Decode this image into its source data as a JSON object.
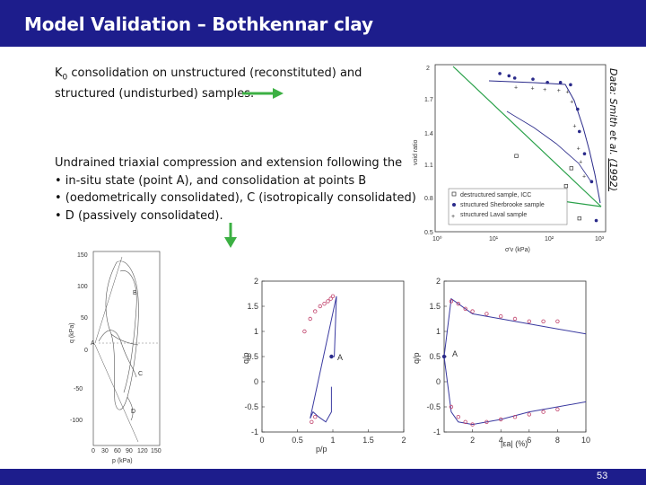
{
  "title": "Model Validation – Bothkennar clay",
  "page_number": "53",
  "text_block_1": {
    "line1_prefix": "K",
    "line1_sub": "0",
    "line1_rest": " consolidation on unstructured (reconstituted) and",
    "line2": "structured (undisturbed) samples."
  },
  "text_block_2": {
    "line1": "Undrained triaxial compression and extension following the",
    "line2": "• in-situ state (point A), and consolidation at points B",
    "line3": "• (oedometrically consolidated), C (isotropically consolidated)",
    "line4": "• D (passively consolidated)."
  },
  "credit": {
    "prefix": "Data: Smith et al. ",
    "year": "(1992)"
  },
  "colors": {
    "title_bar": "#1d1d8c",
    "arrow_green": "#3cb043",
    "model_line": "#3a3aa0",
    "data_points": "#c0406a"
  },
  "chart_data": [
    {
      "type": "scatter",
      "name": "oedometer-void-ratio",
      "xlabel": "σ'v (kPa)",
      "ylabel": "void ratio",
      "xscale": "log",
      "x_ticks": [
        "10⁰",
        "10¹",
        "10²",
        "10³"
      ],
      "y_ticks": [
        "0.5",
        "0.8",
        "1.1",
        "1.4",
        "1.7",
        "2"
      ],
      "ylim": [
        0.5,
        2
      ],
      "legend": [
        "destructured sample, ICC",
        "structured Sherbrooke sample",
        "structured Laval sample"
      ],
      "legend_placement": "bottom-right",
      "series": [
        {
          "name": "destructured sample, ICC",
          "marker": "square-open",
          "x": [
            30,
            40,
            50,
            80,
            100,
            110,
            240,
            420,
            300
          ],
          "y": [
            1.18,
            0.71,
            0.7,
            0.75,
            0.8,
            0.84,
            0.91,
            0.62,
            1.07
          ]
        },
        {
          "name": "structured Sherbrooke sample",
          "marker": "dot",
          "x": [
            15,
            22,
            28,
            60,
            110,
            190,
            290,
            390,
            420,
            520,
            700,
            850
          ],
          "y": [
            1.92,
            1.9,
            1.88,
            1.87,
            1.84,
            1.84,
            1.82,
            1.6,
            1.4,
            1.2,
            0.95,
            0.6
          ]
        },
        {
          "name": "structured Laval sample",
          "marker": "plus",
          "x": [
            30,
            60,
            100,
            180,
            260,
            310,
            350,
            410,
            450,
            520
          ],
          "y": [
            1.8,
            1.79,
            1.78,
            1.77,
            1.76,
            1.67,
            1.45,
            1.25,
            1.13,
            1.0
          ]
        }
      ]
    },
    {
      "type": "line",
      "name": "stress-paths-q-p",
      "xlabel": "p (kPa)",
      "ylabel": "q (kPa)",
      "x_ticks": [
        "0",
        "30",
        "60",
        "90",
        "120",
        "150"
      ],
      "y_ticks": [
        "-100",
        "-50",
        "0",
        "50",
        "100",
        "150"
      ],
      "annotations": [
        "A",
        "B",
        "C",
        "D"
      ]
    },
    {
      "type": "line",
      "name": "normalized-stress-path",
      "xlabel": "p/p_in",
      "ylabel": "q/p_in",
      "xlim": [
        0,
        2
      ],
      "ylim": [
        -1,
        2
      ],
      "x_ticks": [
        "0",
        "0.5",
        "1",
        "1.5",
        "2"
      ],
      "y_ticks": [
        "-1",
        "-0.5",
        "0",
        "0.5",
        "1",
        "1.5",
        "2"
      ],
      "annotations": [
        "A"
      ],
      "series": [
        {
          "name": "model",
          "x": [
            0.98,
            0.98,
            0.9,
            0.8,
            0.72,
            0.68,
            1.05,
            1.02,
            0.98
          ],
          "y": [
            -0.1,
            -0.6,
            -0.8,
            -0.7,
            -0.6,
            -0.73,
            1.7,
            0.5,
            0.5
          ]
        },
        {
          "name": "data",
          "x": [
            0.6,
            0.68,
            0.75,
            0.82,
            0.88,
            0.93,
            0.97,
            1.0,
            0.75,
            0.7
          ],
          "y": [
            1.0,
            1.25,
            1.4,
            1.5,
            1.55,
            1.6,
            1.65,
            1.7,
            -0.7,
            -0.8
          ]
        }
      ]
    },
    {
      "type": "line",
      "name": "normalized-q-vs-strain",
      "xlabel": "|εa| (%)",
      "ylabel": "q/p_in",
      "xlim": [
        0,
        10
      ],
      "ylim": [
        -1,
        2
      ],
      "x_ticks": [
        "2",
        "4",
        "6",
        "8",
        "10"
      ],
      "y_ticks": [
        "-1",
        "-0.5",
        "0",
        "0.5",
        "1",
        "1.5",
        "2"
      ],
      "annotations": [
        "A"
      ],
      "series": [
        {
          "name": "compression-model",
          "x": [
            0,
            0.5,
            1,
            2,
            4,
            6,
            8,
            10
          ],
          "y": [
            0.5,
            1.65,
            1.55,
            1.35,
            1.25,
            1.15,
            1.05,
            0.95
          ]
        },
        {
          "name": "extension-model",
          "x": [
            0,
            0.5,
            1,
            2,
            4,
            6,
            8,
            10
          ],
          "y": [
            0.5,
            -0.6,
            -0.8,
            -0.85,
            -0.75,
            -0.6,
            -0.5,
            -0.4
          ]
        },
        {
          "name": "compression-data",
          "x": [
            0.5,
            1,
            1.5,
            2,
            3,
            4,
            5,
            6,
            7,
            8
          ],
          "y": [
            1.6,
            1.55,
            1.45,
            1.4,
            1.35,
            1.3,
            1.25,
            1.2,
            1.2,
            1.2
          ]
        },
        {
          "name": "extension-data",
          "x": [
            0.5,
            1,
            1.5,
            2,
            3,
            4,
            5,
            6,
            7,
            8
          ],
          "y": [
            -0.5,
            -0.7,
            -0.8,
            -0.85,
            -0.8,
            -0.75,
            -0.7,
            -0.65,
            -0.6,
            -0.55
          ]
        }
      ]
    }
  ]
}
